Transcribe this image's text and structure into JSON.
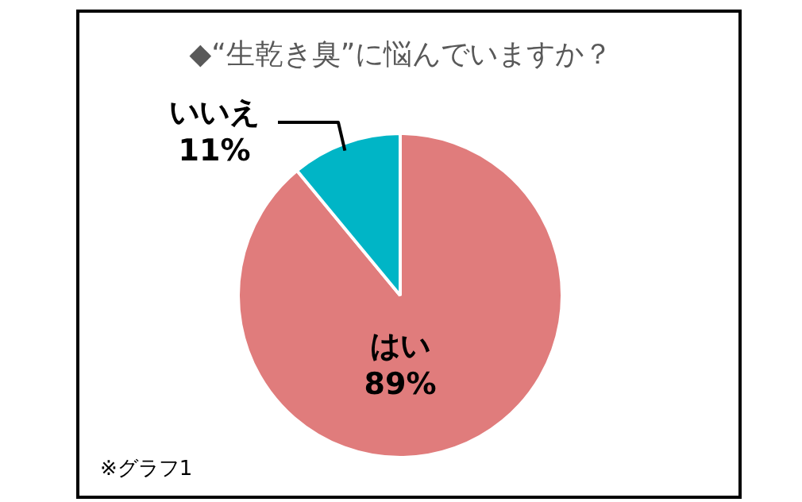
{
  "chart_data": {
    "type": "pie",
    "title": "◆“生乾き臭”に悩んでいますか？",
    "categories": [
      "はい",
      "いいえ"
    ],
    "values": [
      89,
      11
    ],
    "colors": [
      "#e07c7c",
      "#00b5c6"
    ],
    "value_labels": [
      "89%",
      "11%"
    ],
    "legend": false,
    "annotations": [
      "※グラフ1"
    ]
  }
}
